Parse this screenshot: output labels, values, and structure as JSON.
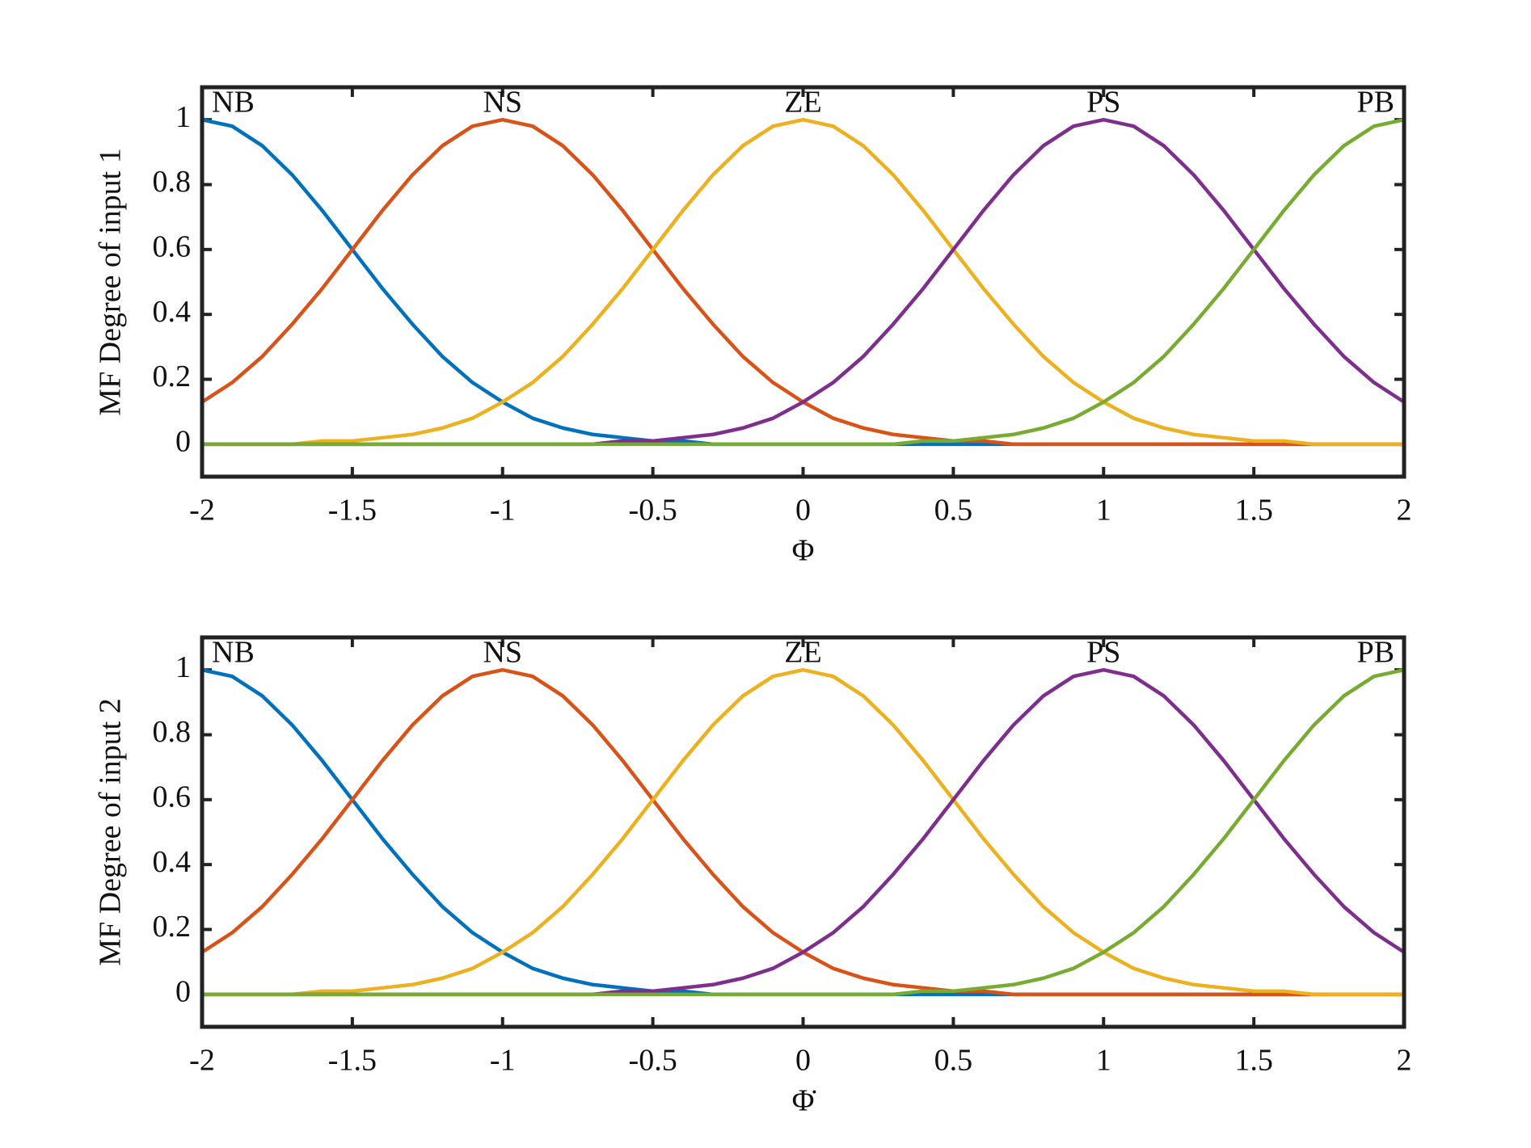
{
  "chart_data": [
    {
      "type": "line",
      "ylabel": "MF Degree of input 1",
      "xlabel": "Φ",
      "xlim": [
        -2,
        2
      ],
      "ylim": [
        -0.1,
        1.1
      ],
      "xticks": [
        -2,
        -1.5,
        -1,
        -0.5,
        0,
        0.5,
        1,
        1.5,
        2
      ],
      "yticks": [
        0,
        0.2,
        0.4,
        0.6,
        0.8,
        1
      ],
      "x": [
        -2,
        -1.9,
        -1.8,
        -1.7,
        -1.6,
        -1.5,
        -1.4,
        -1.3,
        -1.2,
        -1.1,
        -1,
        -0.9,
        -0.8,
        -0.7,
        -0.6,
        -0.5,
        -0.4,
        -0.3,
        -0.2,
        -0.1,
        0,
        0.1,
        0.2,
        0.3,
        0.4,
        0.5,
        0.6,
        0.7,
        0.8,
        0.9,
        1,
        1.1,
        1.2,
        1.3,
        1.4,
        1.5,
        1.6,
        1.7,
        1.8,
        1.9,
        2
      ],
      "series": [
        {
          "name": "NB",
          "color": "#0072BD",
          "values": [
            1,
            0.98,
            0.92,
            0.83,
            0.72,
            0.6,
            0.48,
            0.37,
            0.27,
            0.19,
            0.13,
            0.08,
            0.05,
            0.03,
            0.02,
            0.01,
            0.01,
            0,
            0,
            0,
            0,
            0,
            0,
            0,
            0,
            0,
            0,
            0,
            0,
            0,
            0,
            0,
            0,
            0,
            0,
            0,
            0,
            0,
            0,
            0,
            0
          ]
        },
        {
          "name": "NS",
          "color": "#D95319",
          "values": [
            0.13,
            0.19,
            0.27,
            0.37,
            0.48,
            0.6,
            0.72,
            0.83,
            0.92,
            0.98,
            1,
            0.98,
            0.92,
            0.83,
            0.72,
            0.6,
            0.48,
            0.37,
            0.27,
            0.19,
            0.13,
            0.08,
            0.05,
            0.03,
            0.02,
            0.01,
            0.01,
            0,
            0,
            0,
            0,
            0,
            0,
            0,
            0,
            0,
            0,
            0,
            0,
            0,
            0
          ]
        },
        {
          "name": "ZE",
          "color": "#EDB120",
          "values": [
            0,
            0,
            0,
            0,
            0.01,
            0.01,
            0.02,
            0.03,
            0.05,
            0.08,
            0.13,
            0.19,
            0.27,
            0.37,
            0.48,
            0.6,
            0.72,
            0.83,
            0.92,
            0.98,
            1,
            0.98,
            0.92,
            0.83,
            0.72,
            0.6,
            0.48,
            0.37,
            0.27,
            0.19,
            0.13,
            0.08,
            0.05,
            0.03,
            0.02,
            0.01,
            0.01,
            0,
            0,
            0,
            0
          ]
        },
        {
          "name": "PS",
          "color": "#7E2F8E",
          "values": [
            0,
            0,
            0,
            0,
            0,
            0,
            0,
            0,
            0,
            0,
            0,
            0,
            0,
            0,
            0.01,
            0.01,
            0.02,
            0.03,
            0.05,
            0.08,
            0.13,
            0.19,
            0.27,
            0.37,
            0.48,
            0.6,
            0.72,
            0.83,
            0.92,
            0.98,
            1,
            0.98,
            0.92,
            0.83,
            0.72,
            0.6,
            0.48,
            0.37,
            0.27,
            0.19,
            0.13
          ]
        },
        {
          "name": "PB",
          "color": "#77AC30",
          "values": [
            0,
            0,
            0,
            0,
            0,
            0,
            0,
            0,
            0,
            0,
            0,
            0,
            0,
            0,
            0,
            0,
            0,
            0,
            0,
            0,
            0,
            0,
            0,
            0,
            0.01,
            0.01,
            0.02,
            0.03,
            0.05,
            0.08,
            0.13,
            0.19,
            0.27,
            0.37,
            0.48,
            0.6,
            0.72,
            0.83,
            0.92,
            0.98,
            1
          ]
        }
      ]
    },
    {
      "type": "line",
      "ylabel": "MF Degree of input 2",
      "xlabel": "Φ̇",
      "xlim": [
        -2,
        2
      ],
      "ylim": [
        -0.1,
        1.1
      ],
      "xticks": [
        -2,
        -1.5,
        -1,
        -0.5,
        0,
        0.5,
        1,
        1.5,
        2
      ],
      "yticks": [
        0,
        0.2,
        0.4,
        0.6,
        0.8,
        1
      ],
      "x": [
        -2,
        -1.9,
        -1.8,
        -1.7,
        -1.6,
        -1.5,
        -1.4,
        -1.3,
        -1.2,
        -1.1,
        -1,
        -0.9,
        -0.8,
        -0.7,
        -0.6,
        -0.5,
        -0.4,
        -0.3,
        -0.2,
        -0.1,
        0,
        0.1,
        0.2,
        0.3,
        0.4,
        0.5,
        0.6,
        0.7,
        0.8,
        0.9,
        1,
        1.1,
        1.2,
        1.3,
        1.4,
        1.5,
        1.6,
        1.7,
        1.8,
        1.9,
        2
      ],
      "series": [
        {
          "name": "NB",
          "color": "#0072BD",
          "values": [
            1,
            0.98,
            0.92,
            0.83,
            0.72,
            0.6,
            0.48,
            0.37,
            0.27,
            0.19,
            0.13,
            0.08,
            0.05,
            0.03,
            0.02,
            0.01,
            0.01,
            0,
            0,
            0,
            0,
            0,
            0,
            0,
            0,
            0,
            0,
            0,
            0,
            0,
            0,
            0,
            0,
            0,
            0,
            0,
            0,
            0,
            0,
            0,
            0
          ]
        },
        {
          "name": "NS",
          "color": "#D95319",
          "values": [
            0.13,
            0.19,
            0.27,
            0.37,
            0.48,
            0.6,
            0.72,
            0.83,
            0.92,
            0.98,
            1,
            0.98,
            0.92,
            0.83,
            0.72,
            0.6,
            0.48,
            0.37,
            0.27,
            0.19,
            0.13,
            0.08,
            0.05,
            0.03,
            0.02,
            0.01,
            0.01,
            0,
            0,
            0,
            0,
            0,
            0,
            0,
            0,
            0,
            0,
            0,
            0,
            0,
            0
          ]
        },
        {
          "name": "ZE",
          "color": "#EDB120",
          "values": [
            0,
            0,
            0,
            0,
            0.01,
            0.01,
            0.02,
            0.03,
            0.05,
            0.08,
            0.13,
            0.19,
            0.27,
            0.37,
            0.48,
            0.6,
            0.72,
            0.83,
            0.92,
            0.98,
            1,
            0.98,
            0.92,
            0.83,
            0.72,
            0.6,
            0.48,
            0.37,
            0.27,
            0.19,
            0.13,
            0.08,
            0.05,
            0.03,
            0.02,
            0.01,
            0.01,
            0,
            0,
            0,
            0
          ]
        },
        {
          "name": "PS",
          "color": "#7E2F8E",
          "values": [
            0,
            0,
            0,
            0,
            0,
            0,
            0,
            0,
            0,
            0,
            0,
            0,
            0,
            0,
            0.01,
            0.01,
            0.02,
            0.03,
            0.05,
            0.08,
            0.13,
            0.19,
            0.27,
            0.37,
            0.48,
            0.6,
            0.72,
            0.83,
            0.92,
            0.98,
            1,
            0.98,
            0.92,
            0.83,
            0.72,
            0.6,
            0.48,
            0.37,
            0.27,
            0.19,
            0.13
          ]
        },
        {
          "name": "PB",
          "color": "#77AC30",
          "values": [
            0,
            0,
            0,
            0,
            0,
            0,
            0,
            0,
            0,
            0,
            0,
            0,
            0,
            0,
            0,
            0,
            0,
            0,
            0,
            0,
            0,
            0,
            0,
            0,
            0.01,
            0.01,
            0.02,
            0.03,
            0.05,
            0.08,
            0.13,
            0.19,
            0.27,
            0.37,
            0.48,
            0.6,
            0.72,
            0.83,
            0.92,
            0.98,
            1
          ]
        }
      ]
    }
  ]
}
